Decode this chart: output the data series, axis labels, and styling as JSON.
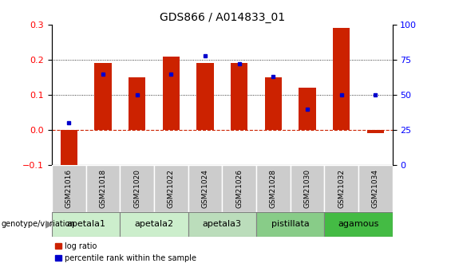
{
  "title": "GDS866 / A014833_01",
  "samples": [
    "GSM21016",
    "GSM21018",
    "GSM21020",
    "GSM21022",
    "GSM21024",
    "GSM21026",
    "GSM21028",
    "GSM21030",
    "GSM21032",
    "GSM21034"
  ],
  "log_ratio": [
    -0.115,
    0.19,
    0.15,
    0.21,
    0.19,
    0.19,
    0.15,
    0.12,
    0.29,
    -0.01
  ],
  "percentile": [
    30,
    65,
    50,
    65,
    78,
    72,
    63,
    40,
    50,
    50
  ],
  "ylim_left": [
    -0.1,
    0.3
  ],
  "ylim_right": [
    0,
    100
  ],
  "yticks_left": [
    -0.1,
    0.0,
    0.1,
    0.2,
    0.3
  ],
  "yticks_right": [
    0,
    25,
    50,
    75,
    100
  ],
  "bar_color": "#CC2200",
  "dot_color": "#0000CC",
  "zeroline_color": "#CC2200",
  "grid_color": "#000000",
  "sample_box_color": "#CCCCCC",
  "genotype_groups": [
    {
      "label": "apetala1",
      "indices": [
        0,
        1
      ],
      "color": "#CCEECC"
    },
    {
      "label": "apetala2",
      "indices": [
        2,
        3
      ],
      "color": "#CCEECC"
    },
    {
      "label": "apetala3",
      "indices": [
        4,
        5
      ],
      "color": "#BBDDBB"
    },
    {
      "label": "pistillata",
      "indices": [
        6,
        7
      ],
      "color": "#88CC88"
    },
    {
      "label": "agamous",
      "indices": [
        8,
        9
      ],
      "color": "#44BB44"
    }
  ],
  "legend_bar_label": "log ratio",
  "legend_dot_label": "percentile rank within the sample",
  "genotype_label": "genotype/variation",
  "background_color": "#FFFFFF"
}
